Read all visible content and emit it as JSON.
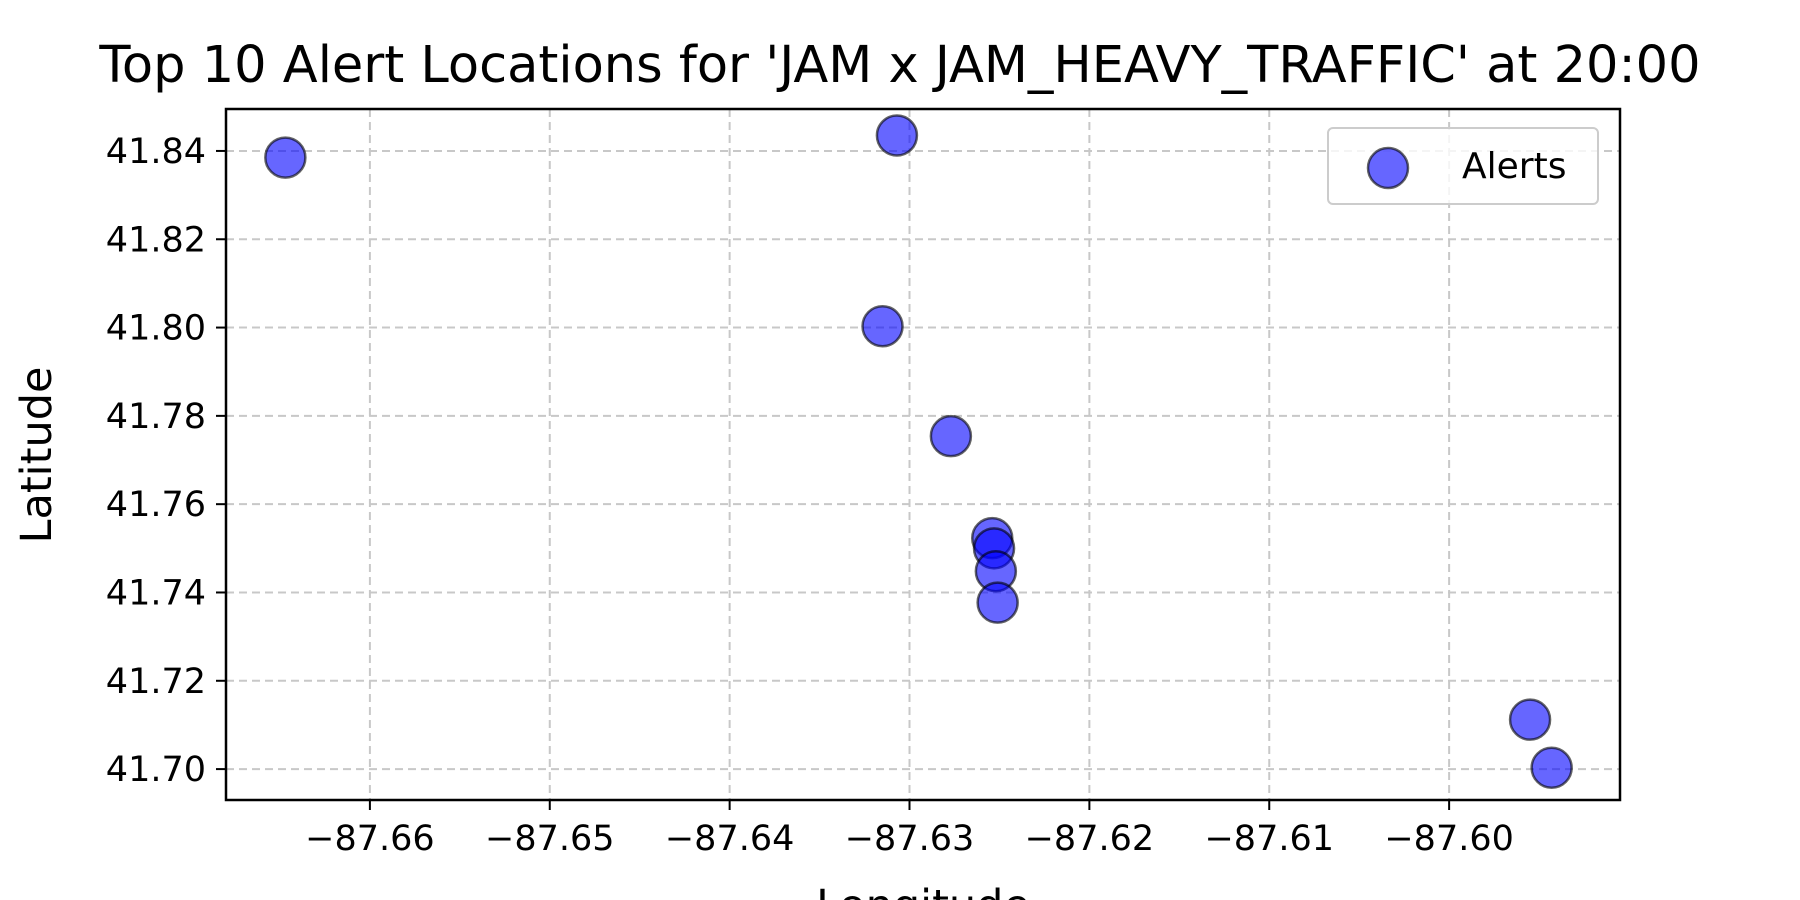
{
  "chart_data": {
    "type": "scatter",
    "title": "Top 10 Alert Locations for 'JAM x JAM_HEAVY_TRAFFIC' at 20:00",
    "xlabel": "Longitude",
    "ylabel": "Latitude",
    "xlim": [
      -87.668,
      -87.5905
    ],
    "ylim": [
      41.693,
      41.8495
    ],
    "xticks": [
      -87.66,
      -87.65,
      -87.64,
      -87.63,
      -87.62,
      -87.61,
      -87.6
    ],
    "xtick_labels": [
      "−87.66",
      "−87.65",
      "−87.64",
      "−87.63",
      "−87.62",
      "−87.61",
      "−87.60"
    ],
    "yticks": [
      41.7,
      41.72,
      41.74,
      41.76,
      41.78,
      41.8,
      41.82,
      41.84
    ],
    "ytick_labels": [
      "41.70",
      "41.72",
      "41.74",
      "41.76",
      "41.78",
      "41.80",
      "41.82",
      "41.84"
    ],
    "grid": true,
    "legend": {
      "position": "upper-right",
      "entries": [
        "Alerts"
      ]
    },
    "series": [
      {
        "name": "Alerts",
        "color": "#0000ff",
        "opacity": 0.6,
        "edge_color": "#000000",
        "points": [
          {
            "x": -87.6647,
            "y": 41.8385
          },
          {
            "x": -87.6307,
            "y": 41.8435
          },
          {
            "x": -87.6315,
            "y": 41.8003
          },
          {
            "x": -87.6277,
            "y": 41.7754
          },
          {
            "x": -87.6254,
            "y": 41.7523
          },
          {
            "x": -87.6253,
            "y": 41.75
          },
          {
            "x": -87.6252,
            "y": 41.7448
          },
          {
            "x": -87.6251,
            "y": 41.7377
          },
          {
            "x": -87.5955,
            "y": 41.7112
          },
          {
            "x": -87.5943,
            "y": 41.7003
          }
        ]
      }
    ]
  }
}
